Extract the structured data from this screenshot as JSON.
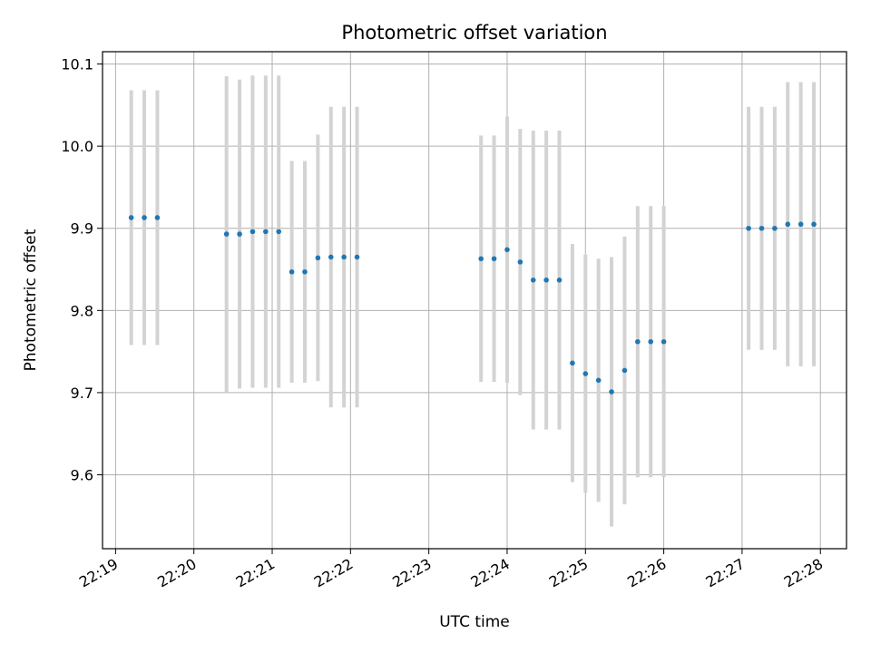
{
  "chart_data": {
    "type": "scatter",
    "title": "Photometric offset variation",
    "xlabel": "UTC time",
    "ylabel": "Photometric offset",
    "xlim": [
      "22:18:50",
      "22:28:20"
    ],
    "ylim": [
      9.51,
      10.115
    ],
    "grid": true,
    "x_ticks": [
      "22:19",
      "22:20",
      "22:21",
      "22:22",
      "22:23",
      "22:24",
      "22:25",
      "22:26",
      "22:27",
      "22:28"
    ],
    "y_ticks": [
      "9.6",
      "9.7",
      "9.8",
      "9.9",
      "10.0",
      "10.1"
    ],
    "series": [
      {
        "marker_color": "#1f77b4",
        "errorbar_color": "#d3d3d3",
        "points": [
          {
            "x": "22:19:12",
            "y": 9.913,
            "err": 0.155
          },
          {
            "x": "22:19:22",
            "y": 9.913,
            "err": 0.155
          },
          {
            "x": "22:19:32",
            "y": 9.913,
            "err": 0.155
          },
          {
            "x": "22:20:25",
            "y": 9.893,
            "err": 0.192
          },
          {
            "x": "22:20:35",
            "y": 9.893,
            "err": 0.188
          },
          {
            "x": "22:20:45",
            "y": 9.896,
            "err": 0.19
          },
          {
            "x": "22:20:55",
            "y": 9.896,
            "err": 0.19
          },
          {
            "x": "22:21:05",
            "y": 9.896,
            "err": 0.19
          },
          {
            "x": "22:21:15",
            "y": 9.847,
            "err": 0.135
          },
          {
            "x": "22:21:25",
            "y": 9.847,
            "err": 0.135
          },
          {
            "x": "22:21:35",
            "y": 9.864,
            "err": 0.15
          },
          {
            "x": "22:21:45",
            "y": 9.865,
            "err": 0.183
          },
          {
            "x": "22:21:55",
            "y": 9.865,
            "err": 0.183
          },
          {
            "x": "22:22:05",
            "y": 9.865,
            "err": 0.183
          },
          {
            "x": "22:23:40",
            "y": 9.863,
            "err": 0.15
          },
          {
            "x": "22:23:50",
            "y": 9.863,
            "err": 0.15
          },
          {
            "x": "22:24:00",
            "y": 9.874,
            "err": 0.162
          },
          {
            "x": "22:24:10",
            "y": 9.859,
            "err": 0.162
          },
          {
            "x": "22:24:20",
            "y": 9.837,
            "err": 0.182
          },
          {
            "x": "22:24:30",
            "y": 9.837,
            "err": 0.182
          },
          {
            "x": "22:24:40",
            "y": 9.837,
            "err": 0.182
          },
          {
            "x": "22:24:50",
            "y": 9.736,
            "err": 0.145
          },
          {
            "x": "22:25:00",
            "y": 9.723,
            "err": 0.145
          },
          {
            "x": "22:25:10",
            "y": 9.715,
            "err": 0.148
          },
          {
            "x": "22:25:20",
            "y": 9.701,
            "err": 0.164
          },
          {
            "x": "22:25:30",
            "y": 9.727,
            "err": 0.163
          },
          {
            "x": "22:25:40",
            "y": 9.762,
            "err": 0.165
          },
          {
            "x": "22:25:50",
            "y": 9.762,
            "err": 0.165
          },
          {
            "x": "22:26:00",
            "y": 9.762,
            "err": 0.165
          },
          {
            "x": "22:27:05",
            "y": 9.9,
            "err": 0.148
          },
          {
            "x": "22:27:15",
            "y": 9.9,
            "err": 0.148
          },
          {
            "x": "22:27:25",
            "y": 9.9,
            "err": 0.148
          },
          {
            "x": "22:27:35",
            "y": 9.905,
            "err": 0.173
          },
          {
            "x": "22:27:45",
            "y": 9.905,
            "err": 0.173
          },
          {
            "x": "22:27:55",
            "y": 9.905,
            "err": 0.173
          }
        ]
      }
    ]
  }
}
